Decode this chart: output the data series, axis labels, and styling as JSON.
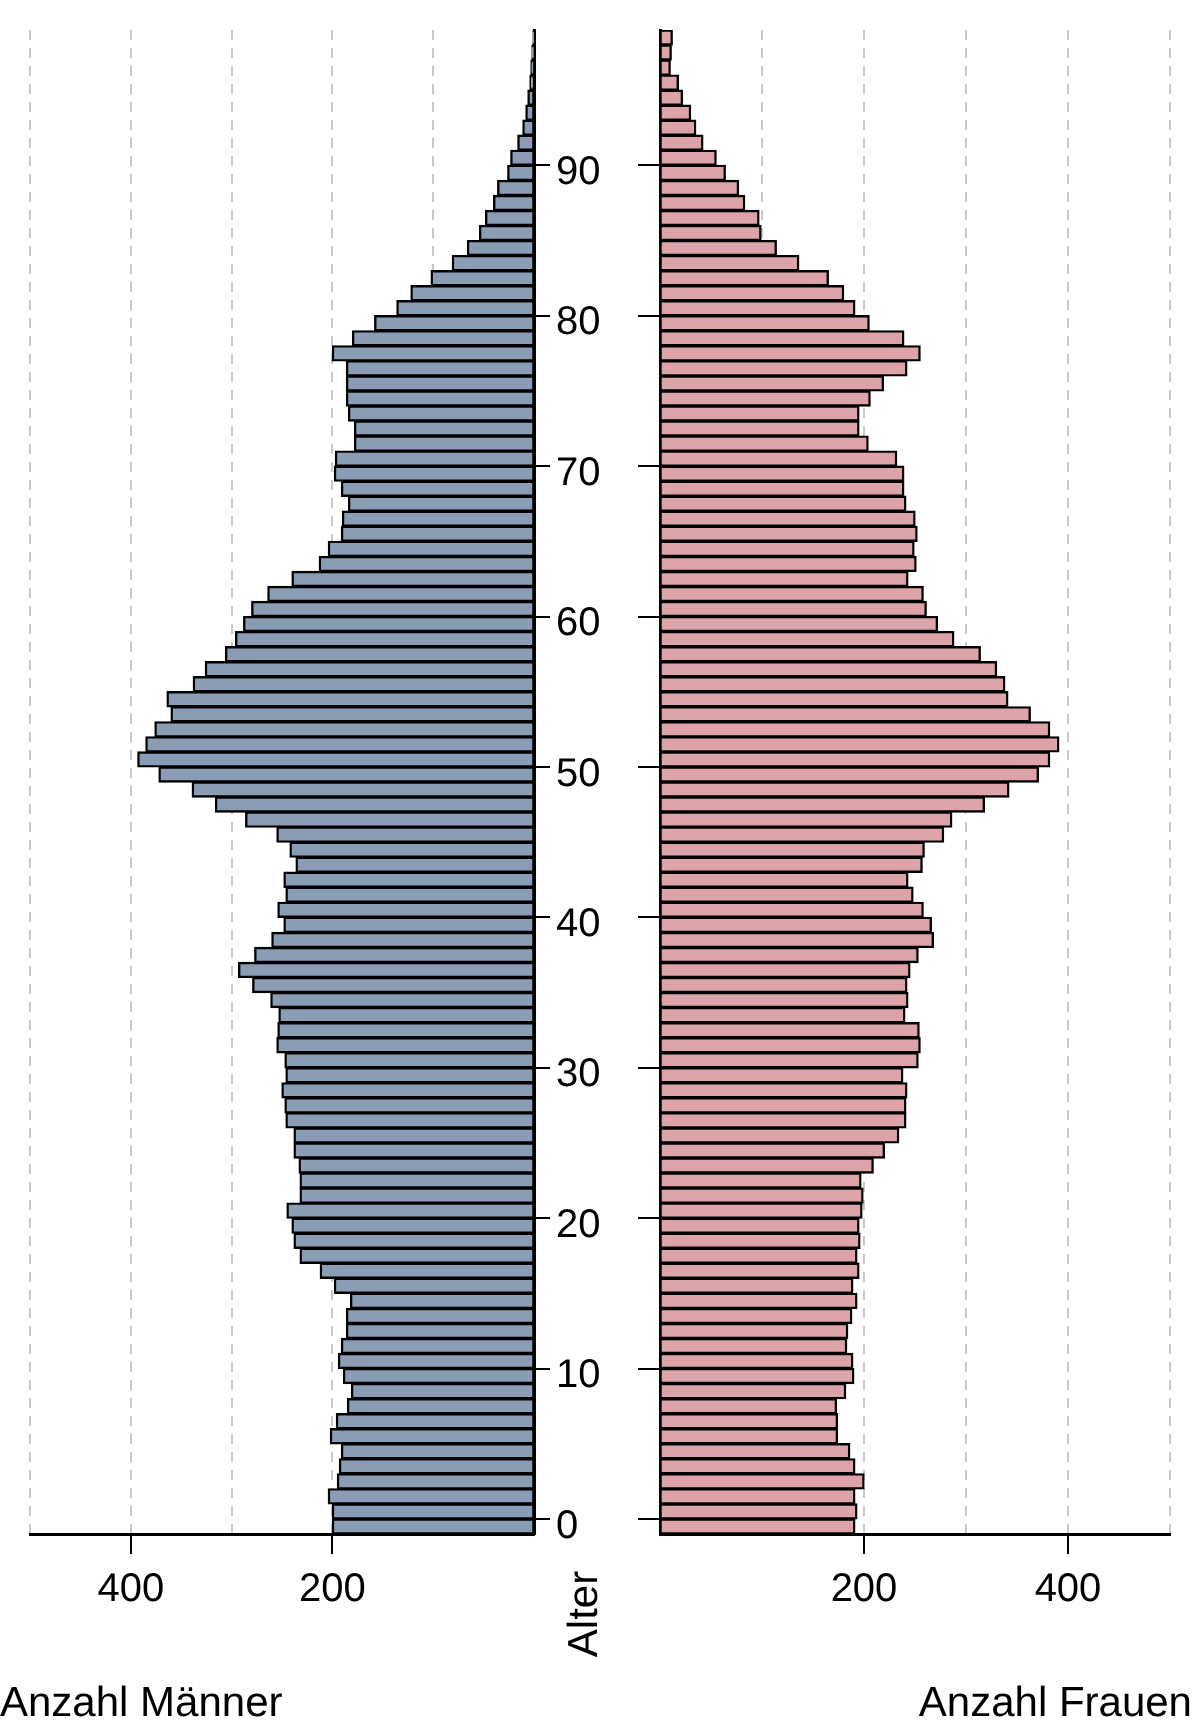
{
  "chart_data": [
    {
      "type": "bar",
      "orientation": "horizontal",
      "xlabel": "Anzahl Männer",
      "ylabel": "Alter",
      "color": "#8a9db5",
      "grid": "x",
      "xlim": [
        500,
        0
      ],
      "xticks": [
        {
          "value": 100,
          "label": null
        },
        {
          "value": 200,
          "label": "200"
        },
        {
          "value": 300,
          "label": null
        },
        {
          "value": 400,
          "label": "400"
        },
        {
          "value": 500,
          "label": null
        }
      ],
      "categories": [
        null,
        null,
        null,
        null,
        null,
        null,
        null,
        null,
        null,
        "90",
        null,
        null,
        null,
        null,
        null,
        null,
        null,
        null,
        null,
        "80",
        null,
        null,
        null,
        null,
        null,
        null,
        null,
        null,
        null,
        "70",
        null,
        null,
        null,
        null,
        null,
        null,
        null,
        null,
        null,
        "60",
        null,
        null,
        null,
        null,
        null,
        null,
        null,
        null,
        null,
        "50",
        null,
        null,
        null,
        null,
        null,
        null,
        null,
        null,
        null,
        "40",
        null,
        null,
        null,
        null,
        null,
        null,
        null,
        null,
        null,
        "30",
        null,
        null,
        null,
        null,
        null,
        null,
        null,
        null,
        null,
        "20",
        null,
        null,
        null,
        null,
        null,
        null,
        null,
        null,
        null,
        "10",
        null,
        null,
        null,
        null,
        null,
        null,
        null,
        null,
        null,
        "0"
      ],
      "values": [
        1,
        2,
        3,
        4,
        6,
        8,
        11,
        16,
        23,
        26,
        36,
        40,
        48,
        54,
        66,
        81,
        102,
        122,
        136,
        158,
        180,
        200,
        186,
        186,
        186,
        184,
        178,
        178,
        197,
        198,
        191,
        184,
        190,
        191,
        204,
        213,
        240,
        264,
        280,
        288,
        296,
        306,
        326,
        338,
        364,
        360,
        376,
        385,
        393,
        372,
        339,
        316,
        286,
        255,
        242,
        236,
        248,
        246,
        254,
        248,
        260,
        277,
        293,
        279,
        261,
        253,
        254,
        255,
        247,
        246,
        250,
        247,
        246,
        238,
        238,
        233,
        232,
        232,
        245,
        240,
        238,
        232,
        212,
        198,
        182,
        186,
        186,
        191,
        194,
        189,
        181,
        185,
        196,
        202,
        191,
        193,
        195,
        204,
        200,
        200
      ]
    },
    {
      "type": "bar",
      "orientation": "horizontal",
      "xlabel": "Anzahl Frauen",
      "color": "#dca4a8",
      "grid": "x",
      "tick_labels": "x",
      "xlim": [
        0,
        500
      ],
      "xticks": [
        {
          "value": 100,
          "label": null
        },
        {
          "value": 200,
          "label": "200"
        },
        {
          "value": 300,
          "label": null
        },
        {
          "value": 400,
          "label": "400"
        },
        {
          "value": 500,
          "label": null
        }
      ],
      "categories": [
        null,
        null,
        null,
        null,
        null,
        null,
        null,
        null,
        null,
        "90",
        null,
        null,
        null,
        null,
        null,
        null,
        null,
        null,
        null,
        "80",
        null,
        null,
        null,
        null,
        null,
        null,
        null,
        null,
        null,
        "70",
        null,
        null,
        null,
        null,
        null,
        null,
        null,
        null,
        null,
        "60",
        null,
        null,
        null,
        null,
        null,
        null,
        null,
        null,
        null,
        "50",
        null,
        null,
        null,
        null,
        null,
        null,
        null,
        null,
        null,
        "40",
        null,
        null,
        null,
        null,
        null,
        null,
        null,
        null,
        null,
        "30",
        null,
        null,
        null,
        null,
        null,
        null,
        null,
        null,
        null,
        "20",
        null,
        null,
        null,
        null,
        null,
        null,
        null,
        null,
        null,
        "10",
        null,
        null,
        null,
        null,
        null,
        null,
        null,
        null,
        null,
        "0"
      ],
      "values": [
        12,
        11,
        10,
        18,
        22,
        30,
        35,
        42,
        55,
        64,
        77,
        83,
        97,
        99,
        114,
        136,
        165,
        180,
        191,
        205,
        239,
        255,
        242,
        219,
        206,
        195,
        195,
        204,
        232,
        239,
        239,
        241,
        250,
        252,
        249,
        251,
        243,
        258,
        261,
        272,
        288,
        314,
        330,
        338,
        341,
        363,
        382,
        391,
        382,
        371,
        342,
        318,
        286,
        278,
        259,
        257,
        243,
        248,
        258,
        266,
        268,
        253,
        245,
        242,
        243,
        240,
        254,
        255,
        253,
        238,
        242,
        241,
        241,
        234,
        220,
        209,
        197,
        199,
        198,
        195,
        196,
        193,
        195,
        189,
        193,
        188,
        184,
        183,
        189,
        190,
        182,
        173,
        174,
        174,
        186,
        191,
        200,
        191,
        193,
        191
      ]
    }
  ]
}
